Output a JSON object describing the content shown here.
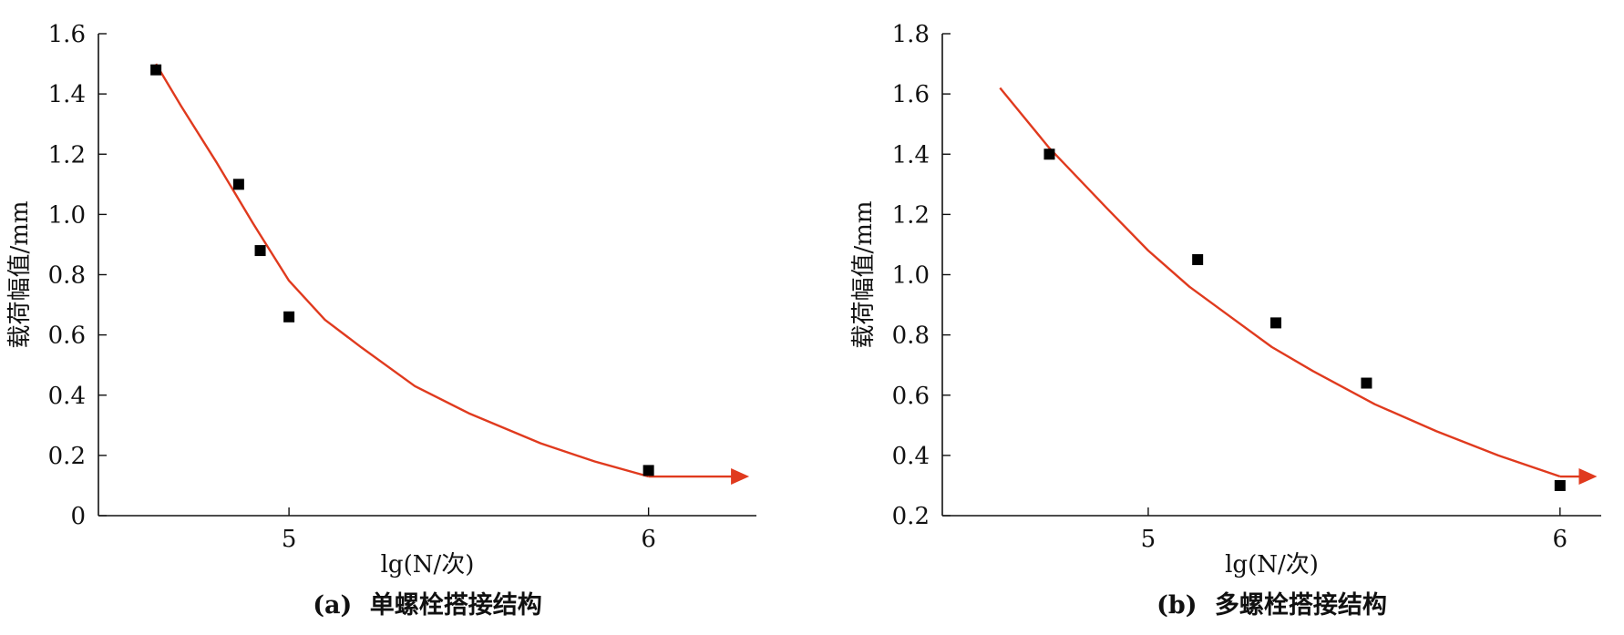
{
  "chart_data": [
    {
      "type": "scatter",
      "panel_label": "(a)",
      "caption": "单螺栓搭接结构",
      "xlabel": "lg(N/次)",
      "ylabel": "载荷幅值/mm",
      "xlim": [
        4.47,
        6.3
      ],
      "ylim": [
        0,
        1.6
      ],
      "x_ticks": [
        5,
        6
      ],
      "x_tick_labels": [
        "5",
        "6"
      ],
      "y_ticks": [
        0,
        0.2,
        0.4,
        0.6,
        0.8,
        1.0,
        1.2,
        1.4,
        1.6
      ],
      "y_tick_labels": [
        "0",
        "0.2",
        "0.4",
        "0.6",
        "0.8",
        "1.0",
        "1.2",
        "1.4",
        "1.6"
      ],
      "grid": false,
      "points": [
        {
          "x": 4.63,
          "y": 1.48
        },
        {
          "x": 4.86,
          "y": 1.1
        },
        {
          "x": 4.92,
          "y": 0.88
        },
        {
          "x": 5.0,
          "y": 0.66
        },
        {
          "x": 6.0,
          "y": 0.15
        }
      ],
      "fit_curve": {
        "color": "#e03a1e",
        "points": [
          [
            4.63,
            1.5
          ],
          [
            4.7,
            1.36
          ],
          [
            4.8,
            1.17
          ],
          [
            4.9,
            0.97
          ],
          [
            5.0,
            0.78
          ],
          [
            5.1,
            0.65
          ],
          [
            5.2,
            0.56
          ],
          [
            5.35,
            0.43
          ],
          [
            5.5,
            0.34
          ],
          [
            5.7,
            0.24
          ],
          [
            5.85,
            0.18
          ],
          [
            6.0,
            0.13
          ]
        ],
        "arrow_to": {
          "x": 6.28,
          "y": 0.13
        }
      },
      "marker_color": "#000000"
    },
    {
      "type": "scatter",
      "panel_label": "(b)",
      "caption": "多螺栓搭接结构",
      "xlabel": "lg(N/次)",
      "ylabel": "载荷幅值/mm",
      "xlim": [
        4.5,
        6.1
      ],
      "ylim": [
        0.2,
        1.8
      ],
      "x_ticks": [
        5,
        6
      ],
      "x_tick_labels": [
        "5",
        "6"
      ],
      "y_ticks": [
        0.2,
        0.4,
        0.6,
        0.8,
        1.0,
        1.2,
        1.4,
        1.6,
        1.8
      ],
      "y_tick_labels": [
        "0.2",
        "0.4",
        "0.6",
        "0.8",
        "1.0",
        "1.2",
        "1.4",
        "1.6",
        "1.8"
      ],
      "grid": false,
      "points": [
        {
          "x": 4.76,
          "y": 1.4
        },
        {
          "x": 5.12,
          "y": 1.05
        },
        {
          "x": 5.31,
          "y": 0.84
        },
        {
          "x": 5.53,
          "y": 0.64
        },
        {
          "x": 6.0,
          "y": 0.3
        }
      ],
      "fit_curve": {
        "color": "#e03a1e",
        "points": [
          [
            4.64,
            1.62
          ],
          [
            4.76,
            1.42
          ],
          [
            4.9,
            1.22
          ],
          [
            5.0,
            1.08
          ],
          [
            5.1,
            0.96
          ],
          [
            5.2,
            0.86
          ],
          [
            5.3,
            0.76
          ],
          [
            5.4,
            0.68
          ],
          [
            5.55,
            0.57
          ],
          [
            5.7,
            0.48
          ],
          [
            5.85,
            0.4
          ],
          [
            6.0,
            0.33
          ]
        ],
        "arrow_to": {
          "x": 6.09,
          "y": 0.33
        }
      },
      "marker_color": "#000000"
    }
  ]
}
